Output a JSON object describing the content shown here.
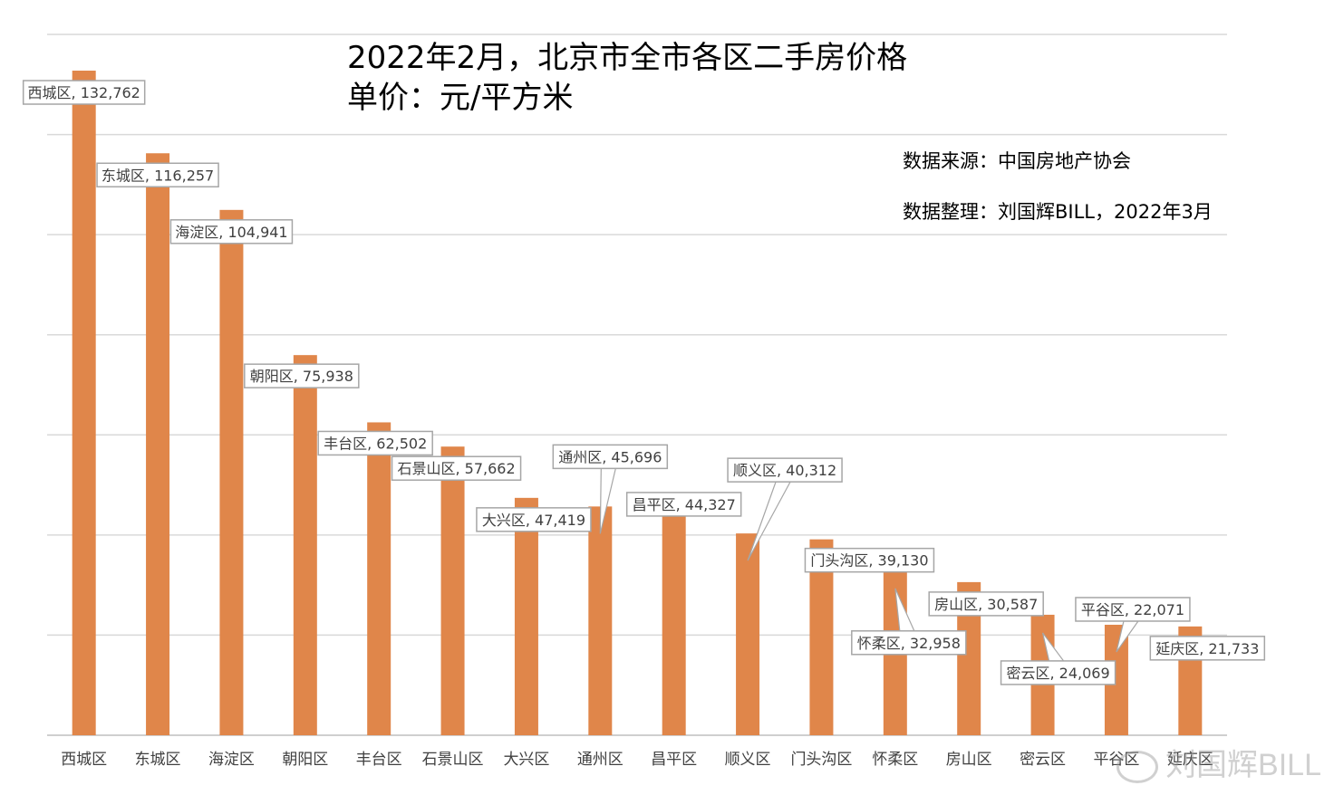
{
  "chart_data": {
    "type": "bar",
    "title": "2022年2月，北京市全市各区二手房价格",
    "subtitle": "单价：元/平方米",
    "source_note": "数据来源：中国房地产协会",
    "compiled_note": "数据整理：刘国辉BILL，2022年3月",
    "categories": [
      "西城区",
      "东城区",
      "海淀区",
      "朝阳区",
      "丰台区",
      "石景山区",
      "大兴区",
      "通州区",
      "昌平区",
      "顺义区",
      "门头沟区",
      "怀柔区",
      "房山区",
      "密云区",
      "平谷区",
      "延庆区"
    ],
    "values": [
      132762,
      116257,
      104941,
      75938,
      62502,
      57662,
      47419,
      45696,
      44327,
      40312,
      39130,
      32958,
      30587,
      24069,
      22071,
      21733
    ],
    "data_labels": [
      "西城区, 132,762",
      "东城区, 116,257",
      "海淀区, 104,941",
      "朝阳区, 75,938",
      "丰台区, 62,502",
      "石景山区, 57,662",
      "大兴区, 47,419",
      "通州区, 45,696",
      "昌平区, 44,327",
      "顺义区, 40,312",
      "门头沟区, 39,130",
      "怀柔区, 32,958",
      "房山区, 30,587",
      "密云区, 24,069",
      "平谷区, 22,071",
      "延庆区, 21,733"
    ],
    "ylim": [
      0,
      140000
    ],
    "grid": true,
    "bar_color": "#E0864A"
  },
  "watermark": "刘国辉BILL"
}
